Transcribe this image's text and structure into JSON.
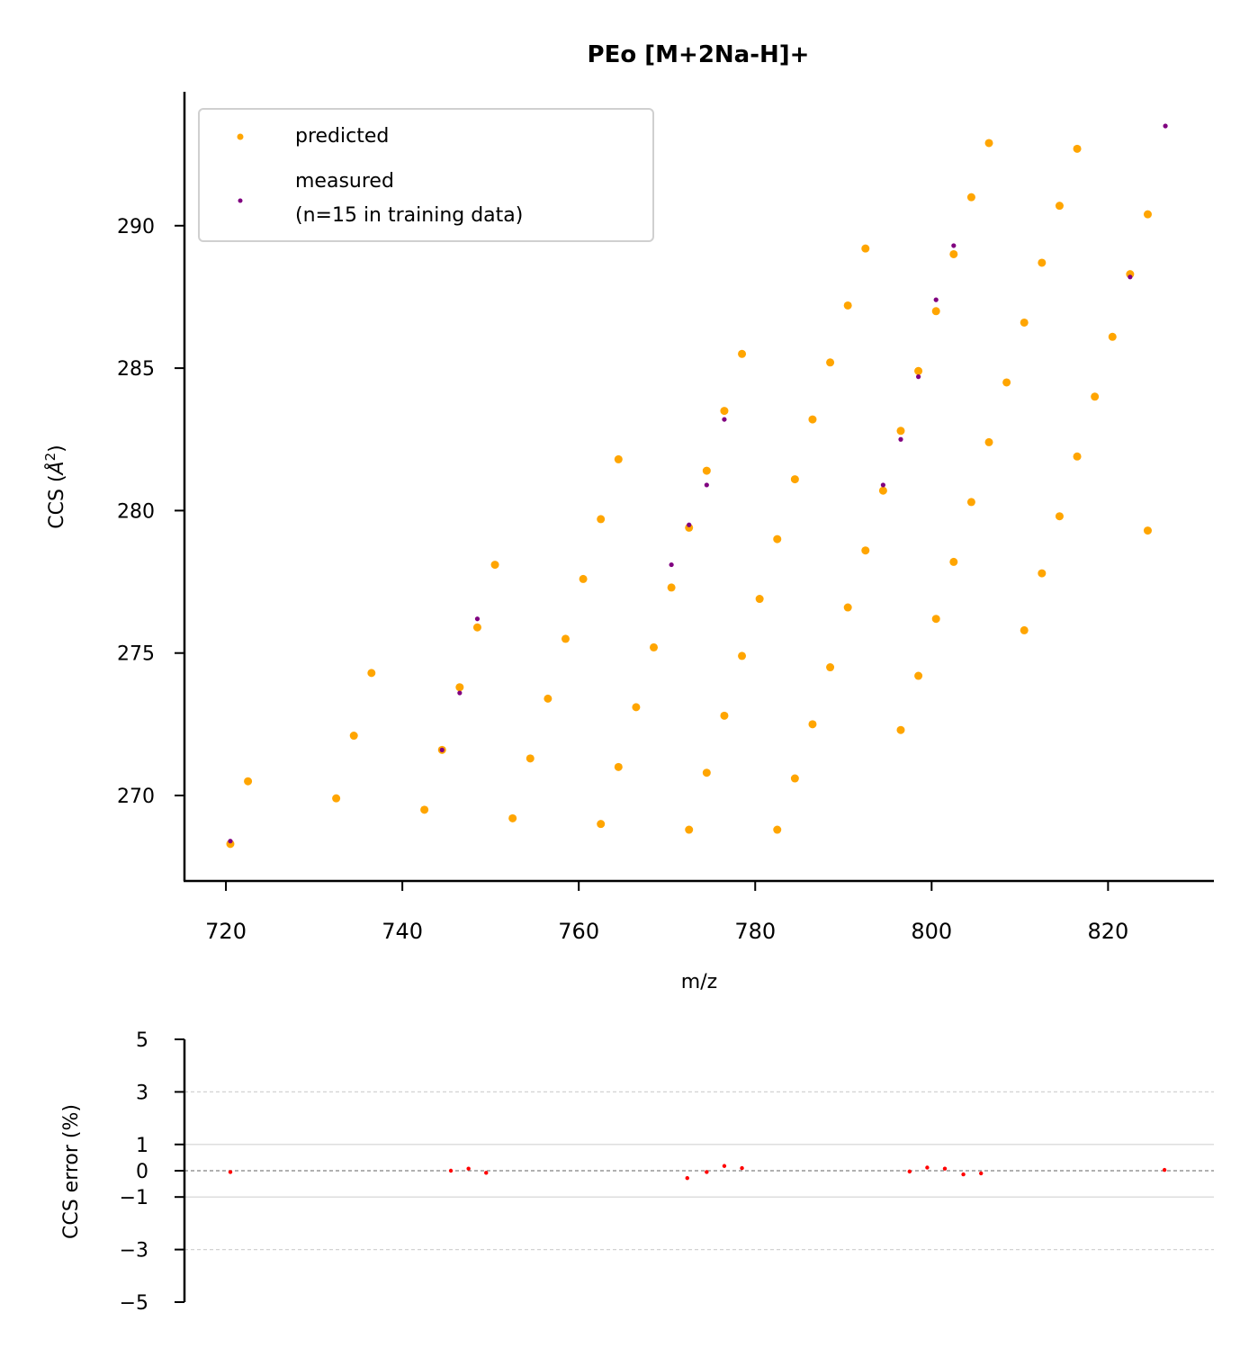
{
  "chart_data": [
    {
      "type": "scatter",
      "title": "PEo [M+2Na-H]+",
      "xlabel": "m/z",
      "ylabel": "CCS (Å²)",
      "xlim": [
        715.3,
        832.0
      ],
      "ylim": [
        267.0,
        294.7
      ],
      "xticks": [
        720,
        740,
        760,
        780,
        800,
        820
      ],
      "yticks": [
        270,
        275,
        280,
        285,
        290
      ],
      "grid": false,
      "legend_position": "top-left",
      "series": [
        {
          "name": "predicted",
          "color": "#FFA500",
          "points": [
            [
              720.5,
              268.3
            ],
            [
              722.5,
              270.5
            ],
            [
              732.5,
              269.9
            ],
            [
              734.5,
              272.1
            ],
            [
              736.5,
              274.3
            ],
            [
              742.5,
              269.5
            ],
            [
              744.5,
              271.6
            ],
            [
              746.5,
              273.8
            ],
            [
              748.5,
              275.9
            ],
            [
              750.5,
              278.1
            ],
            [
              752.5,
              269.2
            ],
            [
              754.5,
              271.3
            ],
            [
              756.5,
              273.4
            ],
            [
              758.5,
              275.5
            ],
            [
              760.5,
              277.6
            ],
            [
              762.5,
              279.7
            ],
            [
              764.5,
              281.8
            ],
            [
              762.5,
              269.0
            ],
            [
              764.5,
              271.0
            ],
            [
              766.5,
              273.1
            ],
            [
              768.5,
              275.2
            ],
            [
              770.5,
              277.3
            ],
            [
              772.5,
              279.4
            ],
            [
              774.5,
              281.4
            ],
            [
              776.5,
              283.5
            ],
            [
              778.5,
              285.5
            ],
            [
              772.5,
              268.8
            ],
            [
              774.5,
              270.8
            ],
            [
              776.5,
              272.8
            ],
            [
              778.5,
              274.9
            ],
            [
              780.5,
              276.9
            ],
            [
              782.5,
              279.0
            ],
            [
              784.5,
              281.1
            ],
            [
              786.5,
              283.2
            ],
            [
              788.5,
              285.2
            ],
            [
              790.5,
              287.2
            ],
            [
              792.5,
              289.2
            ],
            [
              782.5,
              268.8
            ],
            [
              784.5,
              270.6
            ],
            [
              786.5,
              272.5
            ],
            [
              788.5,
              274.5
            ],
            [
              790.5,
              276.6
            ],
            [
              792.5,
              278.6
            ],
            [
              794.5,
              280.7
            ],
            [
              796.5,
              282.8
            ],
            [
              798.5,
              284.9
            ],
            [
              800.5,
              287.0
            ],
            [
              802.5,
              289.0
            ],
            [
              804.5,
              291.0
            ],
            [
              806.5,
              292.9
            ],
            [
              796.5,
              272.3
            ],
            [
              798.5,
              274.2
            ],
            [
              800.5,
              276.2
            ],
            [
              802.5,
              278.2
            ],
            [
              804.5,
              280.3
            ],
            [
              806.5,
              282.4
            ],
            [
              808.5,
              284.5
            ],
            [
              810.5,
              286.6
            ],
            [
              812.5,
              288.7
            ],
            [
              814.5,
              290.7
            ],
            [
              816.5,
              292.7
            ],
            [
              810.5,
              275.8
            ],
            [
              812.5,
              277.8
            ],
            [
              814.5,
              279.8
            ],
            [
              816.5,
              281.9
            ],
            [
              818.5,
              284.0
            ],
            [
              820.5,
              286.1
            ],
            [
              822.5,
              288.3
            ],
            [
              824.5,
              290.4
            ],
            [
              824.5,
              279.3
            ]
          ]
        },
        {
          "name": "measured\n(n=15 in training data)",
          "color": "#800080",
          "points": [
            [
              720.5,
              268.4
            ],
            [
              744.5,
              271.6
            ],
            [
              746.5,
              273.6
            ],
            [
              748.5,
              276.2
            ],
            [
              770.5,
              278.1
            ],
            [
              772.5,
              279.5
            ],
            [
              774.5,
              280.9
            ],
            [
              776.5,
              283.2
            ],
            [
              794.5,
              280.9
            ],
            [
              796.5,
              282.5
            ],
            [
              798.5,
              284.7
            ],
            [
              800.5,
              287.4
            ],
            [
              802.5,
              289.3
            ],
            [
              822.5,
              288.2
            ],
            [
              826.5,
              293.5
            ]
          ]
        }
      ]
    },
    {
      "type": "scatter",
      "title": "",
      "xlabel": "",
      "ylabel": "CCS error (%)",
      "xlim": [
        715.3,
        832.0
      ],
      "ylim": [
        -5,
        5
      ],
      "yticks": [
        -5,
        -3,
        -1,
        0,
        1,
        3,
        5
      ],
      "ytick_labels": [
        "−5",
        "−3",
        "−1",
        "0",
        "1",
        "3",
        "5"
      ],
      "reference_lines": [
        {
          "y": 0,
          "style": "dashed",
          "color": "#808080"
        },
        {
          "y": 1,
          "style": "solid",
          "color": "#D3D3D3"
        },
        {
          "y": -1,
          "style": "solid",
          "color": "#D3D3D3"
        },
        {
          "y": 3,
          "style": "dashed",
          "color": "#D3D3D3"
        },
        {
          "y": -3,
          "style": "dashed",
          "color": "#D3D3D3"
        }
      ],
      "series": [
        {
          "color": "#FF0000",
          "points": [
            [
              720.5,
              -0.05
            ],
            [
              745.5,
              0.0
            ],
            [
              747.5,
              0.08
            ],
            [
              749.5,
              -0.08
            ],
            [
              772.3,
              -0.28
            ],
            [
              774.5,
              -0.05
            ],
            [
              776.5,
              0.18
            ],
            [
              778.5,
              0.1
            ],
            [
              797.5,
              -0.03
            ],
            [
              799.5,
              0.12
            ],
            [
              801.5,
              0.08
            ],
            [
              803.6,
              -0.14
            ],
            [
              805.6,
              -0.1
            ],
            [
              826.4,
              0.03
            ]
          ]
        }
      ]
    }
  ]
}
